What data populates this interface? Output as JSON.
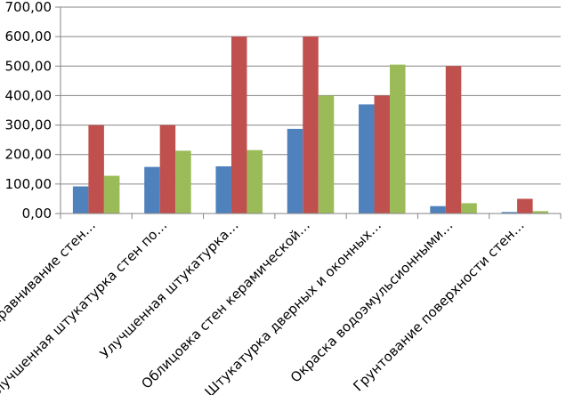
{
  "chart_data": {
    "type": "bar",
    "title": "",
    "xlabel": "",
    "ylabel": "",
    "ylim": [
      0,
      700
    ],
    "yticks": [
      0,
      100,
      200,
      300,
      400,
      500,
      600,
      700
    ],
    "ytick_labels": [
      "0,00",
      "100,00",
      "200,00",
      "300,00",
      "400,00",
      "500,00",
      "600,00",
      "700,00"
    ],
    "grid": true,
    "legend": "none",
    "categories": [
      "Выравнивание стен…",
      "Улучшенная штукатурка стен по…",
      "Улучшенная штукатурка…",
      "Облицовка стен керамической…",
      "Штукатурка дверных и оконных…",
      "Окраска водоэмульсионными…",
      "Грунтование поверхности стен…"
    ],
    "series": [
      {
        "values": [
          92,
          158,
          160,
          287,
          370,
          25,
          5
        ],
        "color": "#4F81BD"
      },
      {
        "values": [
          300,
          300,
          600,
          600,
          400,
          500,
          50
        ],
        "color": "#C0504D"
      },
      {
        "values": [
          128,
          213,
          215,
          400,
          505,
          35,
          8
        ],
        "color": "#9BBB59"
      }
    ]
  }
}
